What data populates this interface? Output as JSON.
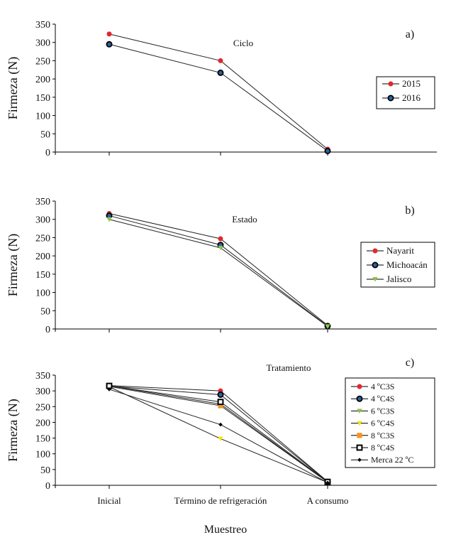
{
  "figure": {
    "xlabel": "Muestreo"
  },
  "chart_data": [
    {
      "type": "line",
      "panel_label": "a)",
      "title": "Ciclo",
      "ylabel": "Firmeza (N)",
      "categories": [
        "Inicial",
        "Término de refrigeración",
        "A consumo"
      ],
      "ylim": [
        0,
        350
      ],
      "yticks": [
        0,
        50,
        100,
        150,
        200,
        250,
        300,
        350
      ],
      "legend_position": "right",
      "series": [
        {
          "name": "2015",
          "values": [
            323,
            250,
            8
          ],
          "color": "#e0282e",
          "marker": "dot"
        },
        {
          "name": "2016",
          "values": [
            295,
            217,
            3
          ],
          "color": "#1f4e8c",
          "marker": "ring"
        }
      ]
    },
    {
      "type": "line",
      "panel_label": "b)",
      "title": "Estado",
      "ylabel": "Firmeza (N)",
      "categories": [
        "Inicial",
        "Término de refrigeración",
        "A consumo"
      ],
      "ylim": [
        0,
        350
      ],
      "yticks": [
        0,
        50,
        100,
        150,
        200,
        250,
        300,
        350
      ],
      "legend_position": "right",
      "series": [
        {
          "name": "Nayarit",
          "values": [
            316,
            247,
            10
          ],
          "color": "#e0282e",
          "marker": "dot"
        },
        {
          "name": "Michoacán",
          "values": [
            310,
            230,
            8
          ],
          "color": "#1f4e8c",
          "marker": "ring"
        },
        {
          "name": "Jalisco",
          "values": [
            300,
            222,
            7
          ],
          "color": "#8dc63f",
          "marker": "tri"
        }
      ]
    },
    {
      "type": "line",
      "panel_label": "c)",
      "title": "Tratamiento",
      "ylabel": "Firmeza (N)",
      "categories": [
        "Inicial",
        "Término de refrigeración",
        "A consumo"
      ],
      "ylim": [
        0,
        350
      ],
      "yticks": [
        0,
        50,
        100,
        150,
        200,
        250,
        300,
        350
      ],
      "legend_position": "right",
      "series": [
        {
          "name": "4 ºC3S",
          "values": [
            317,
            300,
            12
          ],
          "color": "#e0282e",
          "marker": "dot"
        },
        {
          "name": "4 ºC4S",
          "values": [
            315,
            288,
            11
          ],
          "color": "#1f4e8c",
          "marker": "ring"
        },
        {
          "name": "6 ºC3S",
          "values": [
            316,
            258,
            10
          ],
          "color": "#8dc63f",
          "marker": "tri"
        },
        {
          "name": "6 ºC4S",
          "values": [
            313,
            148,
            9
          ],
          "color": "#f2e600",
          "marker": "tri"
        },
        {
          "name": "8 ºC3S",
          "values": [
            314,
            253,
            10
          ],
          "color": "#f7941d",
          "marker": "square"
        },
        {
          "name": "8 ºC4S",
          "values": [
            316,
            265,
            11
          ],
          "color": "#000000",
          "marker": "hollow-square"
        },
        {
          "name": "Merca 22 ºC",
          "values": [
            305,
            193,
            8
          ],
          "color": "#000000",
          "marker": "diamond"
        }
      ]
    }
  ]
}
